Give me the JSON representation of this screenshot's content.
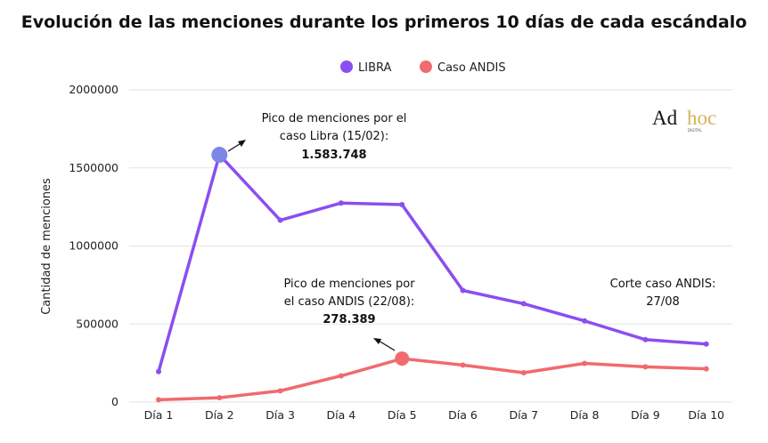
{
  "chart_data": {
    "type": "line",
    "title": "Evolución de las menciones durante los primeros 10 días de cada escándalo",
    "xlabel": "",
    "ylabel": "Cantidad de menciones",
    "categories": [
      "Día 1",
      "Día 2",
      "Día 3",
      "Día 4",
      "Día 5",
      "Día 6",
      "Día 7",
      "Día 8",
      "Día 9",
      "Día 10"
    ],
    "ylim": [
      0,
      2000000
    ],
    "yticks": [
      "0",
      "500000",
      "1000000",
      "1500000",
      "2000000"
    ],
    "grid": true,
    "legend_position": "top-center",
    "series": [
      {
        "name": "LIBRA",
        "color": "#8b4ef0",
        "values": [
          195000,
          1583748,
          1165000,
          1275000,
          1265000,
          715000,
          630000,
          520000,
          400000,
          372000
        ]
      },
      {
        "name": "Caso ANDIS",
        "color": "#f16a6e",
        "values": [
          15000,
          28000,
          72000,
          168000,
          278389,
          237000,
          188000,
          248000,
          226000,
          213000
        ]
      }
    ],
    "annotations": {
      "libra_peak": {
        "lines": [
          "Pico de menciones por el",
          "caso Libra (15/02):"
        ],
        "value": "1.583.748"
      },
      "andis_peak": {
        "lines": [
          "Pico de menciones por",
          "el caso ANDIS (22/08):"
        ],
        "value": "278.389"
      },
      "cutoff": {
        "lines": [
          "Corte caso ANDIS:",
          "27/08"
        ]
      }
    }
  },
  "logo": {
    "main": "Ad hoc",
    "sub": "DIGITAL"
  },
  "colors": {
    "libra": "#8b4ef0",
    "andis": "#f16a6e",
    "libra_peak_marker": "#7b86e6",
    "grid": "#e3e3e3"
  }
}
